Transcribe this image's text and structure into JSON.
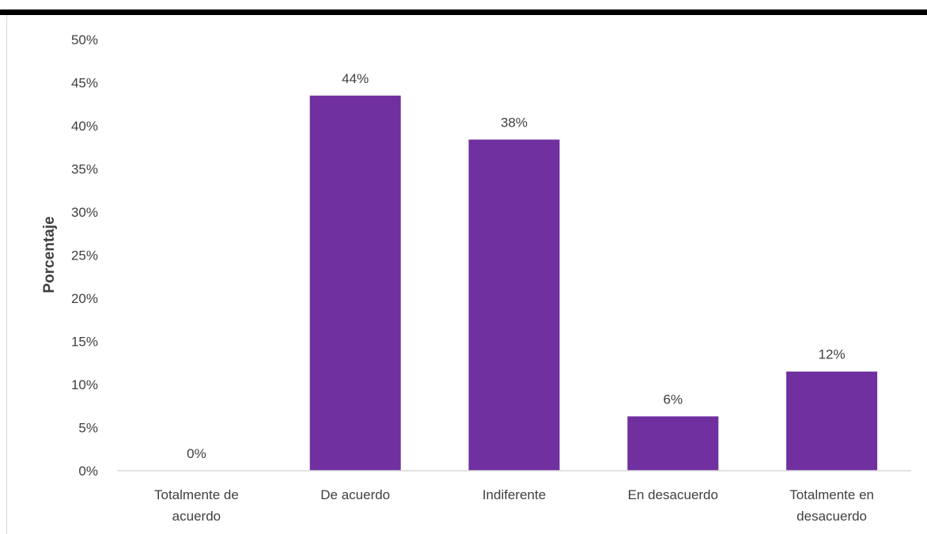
{
  "chart_data": {
    "type": "bar",
    "title": "",
    "xlabel": "",
    "ylabel": "Porcentaje",
    "ylim": [
      0,
      50
    ],
    "yticks": [
      "0%",
      "5%",
      "10%",
      "15%",
      "20%",
      "25%",
      "30%",
      "35%",
      "40%",
      "45%",
      "50%"
    ],
    "categories": [
      [
        "Totalmente de",
        "acuerdo"
      ],
      [
        "De acuerdo"
      ],
      [
        "Indiferente"
      ],
      [
        "En desacuerdo"
      ],
      [
        "Totalmente en",
        "desacuerdo"
      ]
    ],
    "values": [
      0,
      43.5,
      38.4,
      6.3,
      11.5
    ],
    "data_labels": [
      "0%",
      "44%",
      "38%",
      "6%",
      "12%"
    ],
    "grid": false,
    "legend": "none",
    "colors": {
      "bar": "#7030a0",
      "axis": "#d9d9d9",
      "text": "#404040",
      "top_border": "#000000"
    }
  }
}
